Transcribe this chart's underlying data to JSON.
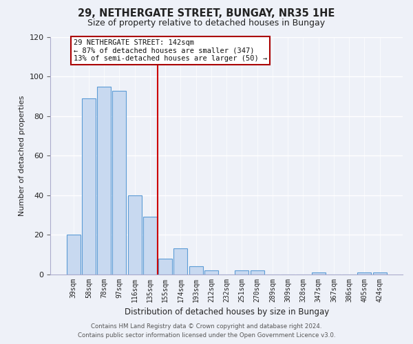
{
  "title": "29, NETHERGATE STREET, BUNGAY, NR35 1HE",
  "subtitle": "Size of property relative to detached houses in Bungay",
  "xlabel": "Distribution of detached houses by size in Bungay",
  "ylabel": "Number of detached properties",
  "bar_color": "#c8d9f0",
  "bar_edge_color": "#5b9bd5",
  "categories": [
    "39sqm",
    "58sqm",
    "78sqm",
    "97sqm",
    "116sqm",
    "135sqm",
    "155sqm",
    "174sqm",
    "193sqm",
    "212sqm",
    "232sqm",
    "251sqm",
    "270sqm",
    "289sqm",
    "309sqm",
    "328sqm",
    "347sqm",
    "367sqm",
    "386sqm",
    "405sqm",
    "424sqm"
  ],
  "values": [
    20,
    89,
    95,
    93,
    40,
    29,
    8,
    13,
    4,
    2,
    0,
    2,
    2,
    0,
    0,
    0,
    1,
    0,
    0,
    1,
    1
  ],
  "ylim": [
    0,
    120
  ],
  "yticks": [
    0,
    20,
    40,
    60,
    80,
    100,
    120
  ],
  "red_line_x": 5.5,
  "annotation_title": "29 NETHERGATE STREET: 142sqm",
  "annotation_line1": "← 87% of detached houses are smaller (347)",
  "annotation_line2": "13% of semi-detached houses are larger (50) →",
  "annotation_box_color": "#ffffff",
  "annotation_box_edge": "#aa0000",
  "footer_line1": "Contains HM Land Registry data © Crown copyright and database right 2024.",
  "footer_line2": "Contains public sector information licensed under the Open Government Licence v3.0.",
  "background_color": "#eef1f8",
  "grid_color": "#ffffff",
  "spine_color": "#aaaacc"
}
